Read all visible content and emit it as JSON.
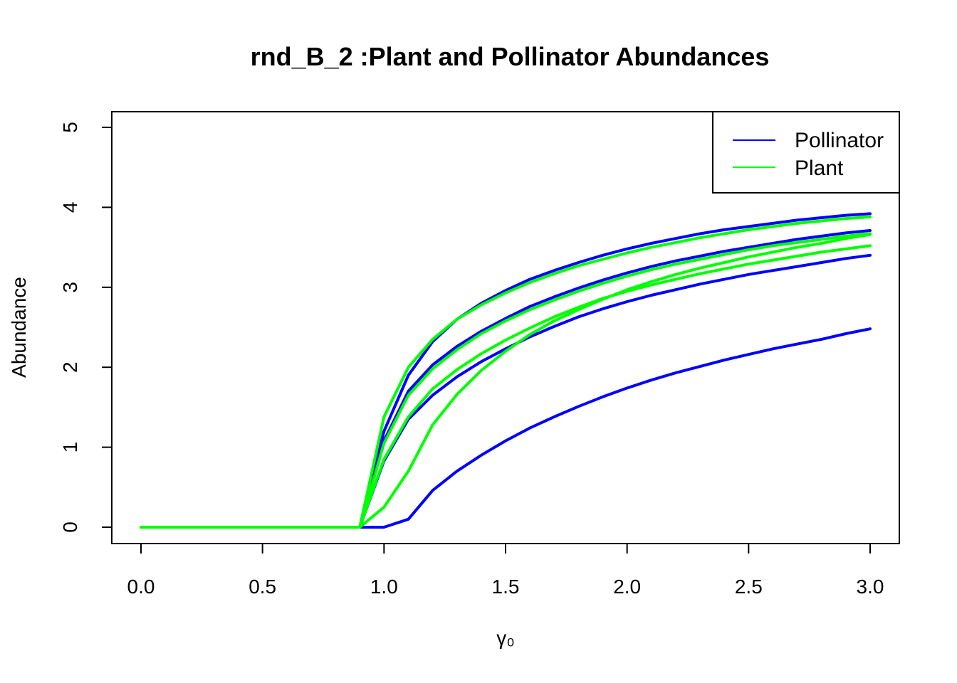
{
  "chart_data": {
    "type": "line",
    "title": "rnd_B_2 :Plant and Pollinator Abundances",
    "xlabel": "γ₀",
    "ylabel": "Abundance",
    "xlim": [
      0.0,
      3.0
    ],
    "ylim": [
      0,
      5
    ],
    "x_ticks": [
      0.0,
      0.5,
      1.0,
      1.5,
      2.0,
      2.5,
      3.0
    ],
    "x_tick_labels": [
      "0.0",
      "0.5",
      "1.0",
      "1.5",
      "2.0",
      "2.5",
      "3.0"
    ],
    "y_ticks": [
      0,
      1,
      2,
      3,
      4,
      5
    ],
    "y_tick_labels": [
      "0",
      "1",
      "2",
      "3",
      "4",
      "5"
    ],
    "grid": false,
    "legend_position": "top-right",
    "legend": [
      {
        "label": "Pollinator",
        "color": "#0000ff"
      },
      {
        "label": "Plant",
        "color": "#00ff00"
      }
    ],
    "x": [
      0.0,
      0.1,
      0.2,
      0.3,
      0.4,
      0.5,
      0.6,
      0.7,
      0.8,
      0.9,
      1.0,
      1.1,
      1.2,
      1.3,
      1.4,
      1.5,
      1.6,
      1.7,
      1.8,
      1.9,
      2.0,
      2.1,
      2.2,
      2.3,
      2.4,
      2.5,
      2.6,
      2.7,
      2.8,
      2.9,
      3.0
    ],
    "series": [
      {
        "group": "Pollinator",
        "color": "#0000ff",
        "values": [
          0,
          0,
          0,
          0,
          0,
          0,
          0,
          0,
          0,
          0,
          0,
          0.1,
          0.46,
          0.7,
          0.9,
          1.08,
          1.24,
          1.38,
          1.51,
          1.63,
          1.74,
          1.84,
          1.93,
          2.01,
          2.09,
          2.16,
          2.23,
          2.29,
          2.35,
          2.42,
          2.48
        ]
      },
      {
        "group": "Pollinator",
        "color": "#0000ff",
        "values": [
          0,
          0,
          0,
          0,
          0,
          0,
          0,
          0,
          0,
          0,
          0.83,
          1.35,
          1.65,
          1.88,
          2.07,
          2.23,
          2.38,
          2.51,
          2.63,
          2.73,
          2.82,
          2.9,
          2.97,
          3.04,
          3.1,
          3.16,
          3.21,
          3.26,
          3.31,
          3.36,
          3.4
        ]
      },
      {
        "group": "Pollinator",
        "color": "#0000ff",
        "values": [
          0,
          0,
          0,
          0,
          0,
          0,
          0,
          0,
          0,
          0,
          1.08,
          1.7,
          2.03,
          2.26,
          2.45,
          2.61,
          2.76,
          2.88,
          2.99,
          3.09,
          3.18,
          3.26,
          3.33,
          3.39,
          3.45,
          3.5,
          3.55,
          3.6,
          3.64,
          3.68,
          3.71
        ]
      },
      {
        "group": "Pollinator",
        "color": "#0000ff",
        "values": [
          0,
          0,
          0,
          0,
          0,
          0,
          0,
          0,
          0,
          0,
          1.2,
          1.9,
          2.32,
          2.6,
          2.8,
          2.96,
          3.1,
          3.21,
          3.31,
          3.4,
          3.48,
          3.55,
          3.61,
          3.67,
          3.72,
          3.76,
          3.8,
          3.84,
          3.87,
          3.9,
          3.92
        ]
      },
      {
        "group": "Plant",
        "color": "#00ff00",
        "values": [
          0,
          0,
          0,
          0,
          0,
          0,
          0,
          0,
          0,
          0,
          0.25,
          0.7,
          1.28,
          1.66,
          1.96,
          2.2,
          2.41,
          2.58,
          2.72,
          2.85,
          2.97,
          3.07,
          3.16,
          3.24,
          3.31,
          3.38,
          3.44,
          3.5,
          3.55,
          3.61,
          3.66
        ]
      },
      {
        "group": "Plant",
        "color": "#00ff00",
        "values": [
          0,
          0,
          0,
          0,
          0,
          0,
          0,
          0,
          0,
          0,
          0.85,
          1.38,
          1.73,
          1.97,
          2.17,
          2.34,
          2.49,
          2.63,
          2.75,
          2.86,
          2.95,
          3.03,
          3.1,
          3.17,
          3.23,
          3.29,
          3.34,
          3.39,
          3.44,
          3.48,
          3.52
        ]
      },
      {
        "group": "Plant",
        "color": "#00ff00",
        "values": [
          0,
          0,
          0,
          0,
          0,
          0,
          0,
          0,
          0,
          0,
          1.05,
          1.65,
          1.98,
          2.22,
          2.42,
          2.58,
          2.72,
          2.84,
          2.95,
          3.05,
          3.14,
          3.22,
          3.29,
          3.35,
          3.41,
          3.47,
          3.52,
          3.56,
          3.6,
          3.64,
          3.67
        ]
      },
      {
        "group": "Plant",
        "color": "#00ff00",
        "values": [
          0,
          0,
          0,
          0,
          0,
          0,
          0,
          0,
          0,
          0,
          1.38,
          2.0,
          2.35,
          2.6,
          2.78,
          2.93,
          3.06,
          3.17,
          3.27,
          3.35,
          3.43,
          3.5,
          3.56,
          3.62,
          3.67,
          3.72,
          3.76,
          3.8,
          3.83,
          3.86,
          3.88
        ]
      }
    ]
  }
}
